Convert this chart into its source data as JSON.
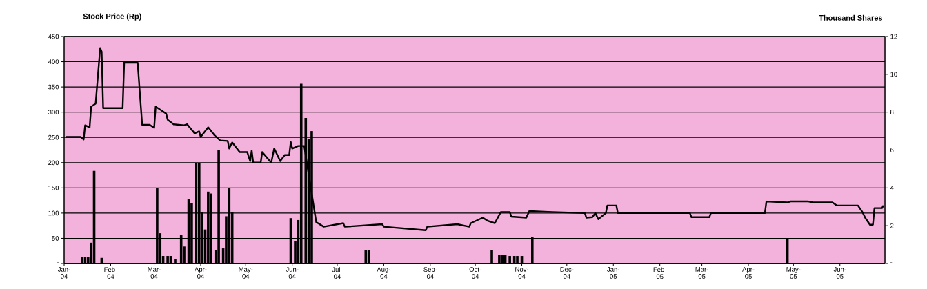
{
  "chart_data": {
    "type": "line",
    "ylabel": "Stock Price (Rp)",
    "y2label": "Thousand Shares",
    "xlim": [
      "2004-01-01",
      "2005-07-01"
    ],
    "xticks": [
      {
        "value": "2004-01-01",
        "label": "Jan-04"
      },
      {
        "value": "2004-02-01",
        "label": "Feb-04"
      },
      {
        "value": "2004-03-01",
        "label": "Mar-04"
      },
      {
        "value": "2004-04-01",
        "label": "Apr-04"
      },
      {
        "value": "2004-05-01",
        "label": "May-04"
      },
      {
        "value": "2004-06-01",
        "label": "Jun-04"
      },
      {
        "value": "2004-07-01",
        "label": "Jul-04"
      },
      {
        "value": "2004-08-01",
        "label": "Aug-04"
      },
      {
        "value": "2004-09-01",
        "label": "Sep-04"
      },
      {
        "value": "2004-10-01",
        "label": "Oct-04"
      },
      {
        "value": "2004-11-01",
        "label": "Nov-04"
      },
      {
        "value": "2004-12-01",
        "label": "Dec-04"
      },
      {
        "value": "2005-01-01",
        "label": "Jan-05"
      },
      {
        "value": "2005-02-01",
        "label": "Feb-05"
      },
      {
        "value": "2005-03-01",
        "label": "Mar-05"
      },
      {
        "value": "2005-04-01",
        "label": "Apr-05"
      },
      {
        "value": "2005-05-01",
        "label": "May-05"
      },
      {
        "value": "2005-06-01",
        "label": "Jun-05"
      }
    ],
    "ylim": [
      0,
      450
    ],
    "yticks": [
      {
        "value": 0,
        "label": "-"
      },
      50,
      100,
      150,
      200,
      250,
      300,
      350,
      400,
      450
    ],
    "y2lim": [
      0,
      12
    ],
    "y2ticks": [
      {
        "value": 0,
        "label": "-"
      },
      2,
      4,
      6,
      8,
      10,
      12
    ],
    "grid": "y",
    "marker": "none",
    "series": [
      {
        "type": "bar",
        "axis": "y2",
        "color": "#000000",
        "x": [
          "2004-01-13",
          "2004-01-15",
          "2004-01-17",
          "2004-01-19",
          "2004-01-21",
          "2004-01-26",
          "2004-03-03",
          "2004-03-05",
          "2004-03-07",
          "2004-03-10",
          "2004-03-12",
          "2004-03-15",
          "2004-03-19",
          "2004-03-21",
          "2004-03-24",
          "2004-03-26",
          "2004-03-29",
          "2004-03-31",
          "2004-04-02",
          "2004-04-04",
          "2004-04-06",
          "2004-04-08",
          "2004-04-11",
          "2004-04-13",
          "2004-04-16",
          "2004-04-18",
          "2004-04-20",
          "2004-04-22",
          "2004-05-31",
          "2004-06-03",
          "2004-06-05",
          "2004-06-07",
          "2004-06-10",
          "2004-06-12",
          "2004-06-14",
          "2004-07-20",
          "2004-07-22",
          "2004-10-12",
          "2004-10-17",
          "2004-10-19",
          "2004-10-21",
          "2004-10-24",
          "2004-10-27",
          "2004-10-29",
          "2004-11-01",
          "2004-11-08",
          "2005-04-27"
        ],
        "values": [
          0.35,
          0.35,
          0.35,
          1.1,
          4.9,
          0.3,
          4.0,
          1.6,
          0.4,
          0.4,
          0.4,
          0.25,
          1.5,
          0.9,
          3.4,
          3.2,
          5.3,
          5.3,
          2.7,
          1.8,
          3.8,
          3.7,
          0.7,
          6.0,
          0.8,
          2.5,
          4.0,
          2.7,
          2.4,
          1.2,
          2.3,
          9.5,
          7.7,
          6.6,
          7.0,
          0.7,
          0.7,
          0.7,
          0.45,
          0.45,
          0.45,
          0.4,
          0.4,
          0.4,
          0.4,
          1.4,
          1.35
        ]
      },
      {
        "color": "#000000",
        "x": [
          "2004-01-02",
          "2004-01-12",
          "2004-01-14",
          "2004-01-15",
          "2004-01-18",
          "2004-01-19",
          "2004-01-22",
          "2004-01-25",
          "2004-01-26",
          "2004-01-27",
          "2004-02-09",
          "2004-02-10",
          "2004-02-19",
          "2004-02-22",
          "2004-02-27",
          "2004-03-01",
          "2004-03-02",
          "2004-03-09",
          "2004-03-10",
          "2004-03-14",
          "2004-03-21",
          "2004-03-23",
          "2004-03-28",
          "2004-03-31",
          "2004-04-01",
          "2004-04-06",
          "2004-04-10",
          "2004-04-14",
          "2004-04-19",
          "2004-04-20",
          "2004-04-22",
          "2004-04-27",
          "2004-05-02",
          "2004-05-04",
          "2004-05-05",
          "2004-05-06",
          "2004-05-11",
          "2004-05-12",
          "2004-05-18",
          "2004-05-20",
          "2004-05-24",
          "2004-05-27",
          "2004-05-30",
          "2004-05-31",
          "2004-06-01",
          "2004-06-05",
          "2004-06-09",
          "2004-06-17",
          "2004-06-22",
          "2004-07-05",
          "2004-07-06",
          "2004-07-31",
          "2004-08-01",
          "2004-08-29",
          "2004-08-30",
          "2004-09-19",
          "2004-09-27",
          "2004-09-28",
          "2004-10-06",
          "2004-10-09",
          "2004-10-14",
          "2004-10-18",
          "2004-10-24",
          "2004-10-25",
          "2004-11-04",
          "2004-11-06",
          "2004-11-21",
          "2004-12-13",
          "2004-12-14",
          "2004-12-18",
          "2004-12-20",
          "2004-12-22",
          "2004-12-27",
          "2004-12-28",
          "2005-01-03",
          "2005-01-04",
          "2005-02-21",
          "2005-02-22",
          "2005-03-06",
          "2005-03-07",
          "2005-04-12",
          "2005-04-13",
          "2005-04-27",
          "2005-04-29",
          "2005-05-11",
          "2005-05-14",
          "2005-05-27",
          "2005-05-30",
          "2005-06-13",
          "2005-06-16",
          "2005-06-18",
          "2005-06-21",
          "2005-06-23",
          "2005-06-24",
          "2005-06-29",
          "2005-06-30"
        ],
        "values": [
          251,
          251,
          246,
          274,
          270,
          311,
          317,
          427,
          420,
          308,
          308,
          398,
          398,
          275,
          275,
          269,
          311,
          297,
          285,
          276,
          274,
          276,
          258,
          262,
          251,
          270,
          255,
          244,
          243,
          228,
          240,
          221,
          221,
          203,
          224,
          200,
          200,
          221,
          200,
          228,
          203,
          215,
          215,
          241,
          228,
          233,
          233,
          82,
          73,
          80,
          73,
          78,
          73,
          66,
          73,
          78,
          73,
          80,
          91,
          85,
          80,
          102,
          102,
          93,
          91,
          104,
          102,
          100,
          91,
          92,
          100,
          88,
          100,
          115,
          115,
          100,
          100,
          92,
          92,
          100,
          100,
          123,
          121,
          123,
          123,
          121,
          121,
          115,
          115,
          102,
          90,
          77,
          77,
          110,
          110,
          115
        ]
      }
    ]
  }
}
